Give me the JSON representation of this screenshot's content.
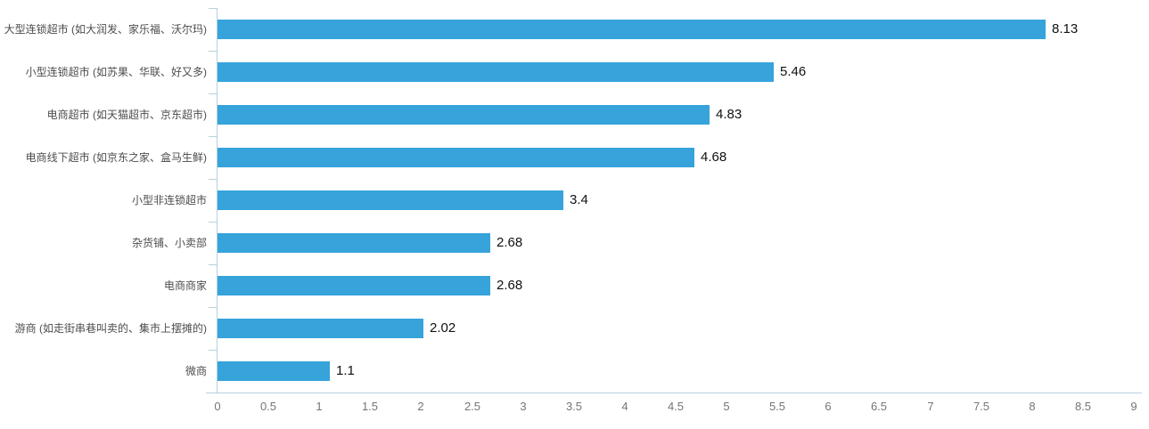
{
  "chart_data": {
    "type": "bar",
    "orientation": "horizontal",
    "title": "",
    "xlabel": "",
    "ylabel": "",
    "grid": false,
    "legend": false,
    "xlim": [
      0,
      9
    ],
    "x_tick_labels": [
      "0",
      "0.5",
      "1",
      "1.5",
      "2",
      "2.5",
      "3",
      "3.5",
      "4",
      "4.5",
      "5",
      "5.5",
      "6",
      "6.5",
      "7",
      "7.5",
      "8",
      "8.5",
      "9"
    ],
    "x_tick_values": [
      0,
      0.5,
      1,
      1.5,
      2,
      2.5,
      3,
      3.5,
      4,
      4.5,
      5,
      5.5,
      6,
      6.5,
      7,
      7.5,
      8,
      8.5,
      9
    ],
    "categories": [
      "大型连锁超市 (如大润发、家乐福、沃尔玛)",
      "小型连锁超市 (如苏果、华联、好又多)",
      "电商超市 (如天猫超市、京东超市)",
      "电商线下超市 (如京东之家、盒马生鲜)",
      "小型非连锁超市",
      "杂货铺、小卖部",
      "电商商家",
      "游商 (如走街串巷叫卖的、集市上摆摊的)",
      "微商"
    ],
    "values": [
      8.13,
      5.46,
      4.83,
      4.68,
      3.4,
      2.68,
      2.68,
      2.02,
      1.1
    ],
    "value_labels": [
      "8.13",
      "5.46",
      "4.83",
      "4.68",
      "3.4",
      "2.68",
      "2.68",
      "2.02",
      "1.1"
    ],
    "colors": {
      "bar": "#36a3db",
      "axis": "#b7d0dc",
      "category_label": "#4d4d4d",
      "tick_label": "#757575",
      "value_label": "#111111"
    }
  }
}
